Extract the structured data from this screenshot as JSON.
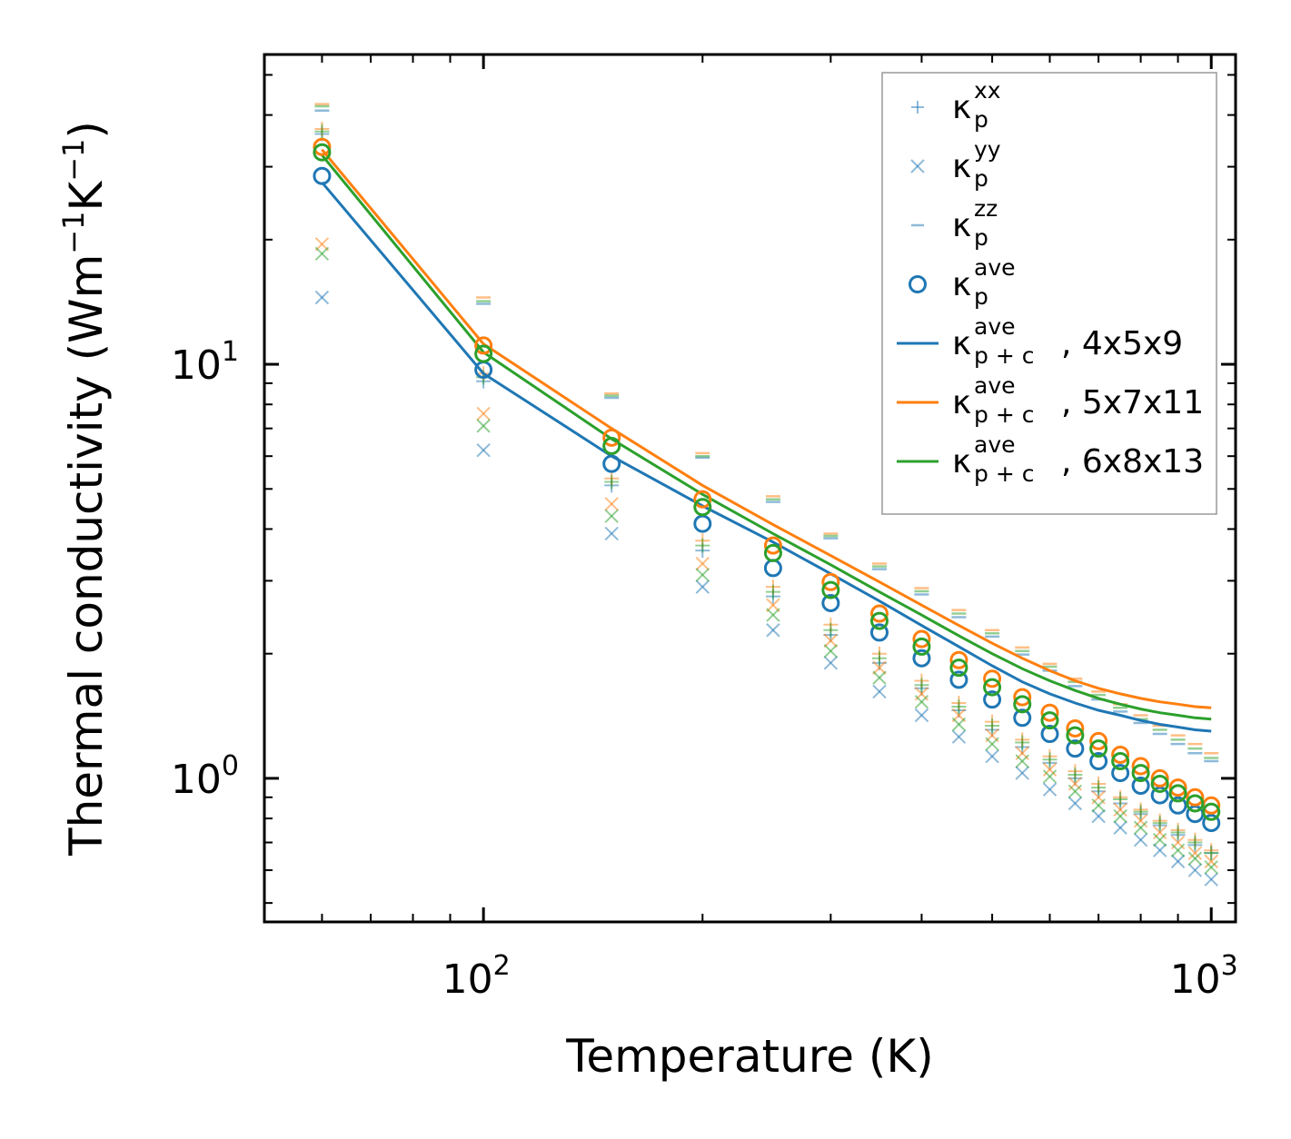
{
  "chart_data": {
    "type": "scatter",
    "xscale": "log",
    "yscale": "log",
    "xlabel": "Temperature (K)",
    "ylabel": {
      "main": "Thermal conductivity (Wm",
      "sup1": "−1",
      "mid": "K",
      "sup2": "−1",
      "end": ")"
    },
    "xlim": [
      50,
      1080
    ],
    "ylim": [
      0.45,
      56
    ],
    "x_major_ticks": [
      {
        "value": 100,
        "base": "10",
        "exp": "2"
      },
      {
        "value": 1000,
        "base": "10",
        "exp": "3"
      }
    ],
    "y_major_ticks": [
      {
        "value": 1,
        "base": "10",
        "exp": "0"
      },
      {
        "value": 10,
        "base": "10",
        "exp": "1"
      }
    ],
    "temperatures": [
      60,
      100,
      150,
      200,
      250,
      300,
      350,
      400,
      450,
      500,
      550,
      600,
      650,
      700,
      750,
      800,
      850,
      900,
      950,
      1000
    ],
    "datasets": [
      {
        "grid": "4x5x9",
        "color": "#1f77b4",
        "k_ave": [
          28.5,
          9.7,
          5.75,
          4.12,
          3.22,
          2.65,
          2.25,
          1.95,
          1.73,
          1.55,
          1.4,
          1.28,
          1.18,
          1.1,
          1.03,
          0.96,
          0.91,
          0.86,
          0.82,
          0.78
        ],
        "k_xx": [
          36,
          9.1,
          5.1,
          3.55,
          2.75,
          2.22,
          1.9,
          1.65,
          1.46,
          1.31,
          1.19,
          1.09,
          1.0,
          0.93,
          0.87,
          0.82,
          0.77,
          0.73,
          0.69,
          0.66
        ],
        "k_yy": [
          14.5,
          6.2,
          3.9,
          2.9,
          2.28,
          1.9,
          1.62,
          1.42,
          1.26,
          1.13,
          1.03,
          0.94,
          0.87,
          0.81,
          0.76,
          0.71,
          0.67,
          0.63,
          0.6,
          0.57
        ],
        "k_zz": [
          41,
          14,
          8.3,
          5.95,
          4.65,
          3.8,
          3.2,
          2.78,
          2.45,
          2.2,
          1.99,
          1.82,
          1.67,
          1.55,
          1.45,
          1.36,
          1.28,
          1.21,
          1.15,
          1.1
        ],
        "k_pc": [
          27.5,
          9.5,
          6.0,
          4.55,
          3.72,
          3.12,
          2.68,
          2.34,
          2.08,
          1.87,
          1.71,
          1.6,
          1.52,
          1.46,
          1.42,
          1.38,
          1.35,
          1.33,
          1.31,
          1.3
        ]
      },
      {
        "grid": "5x7x11",
        "color": "#ff7f0e",
        "k_ave": [
          33.5,
          11.1,
          6.65,
          4.72,
          3.65,
          2.98,
          2.5,
          2.17,
          1.93,
          1.74,
          1.57,
          1.44,
          1.32,
          1.23,
          1.14,
          1.07,
          1.0,
          0.95,
          0.9,
          0.86
        ],
        "k_xx": [
          37,
          9.5,
          5.3,
          3.75,
          2.9,
          2.35,
          2.0,
          1.72,
          1.52,
          1.37,
          1.24,
          1.13,
          1.04,
          0.97,
          0.9,
          0.84,
          0.79,
          0.75,
          0.71,
          0.67
        ],
        "k_yy": [
          19.5,
          7.6,
          4.6,
          3.3,
          2.62,
          2.15,
          1.85,
          1.6,
          1.42,
          1.27,
          1.15,
          1.05,
          0.97,
          0.9,
          0.84,
          0.79,
          0.74,
          0.7,
          0.66,
          0.63
        ],
        "k_zz": [
          42.5,
          14.5,
          8.5,
          6.1,
          4.8,
          3.9,
          3.3,
          2.88,
          2.55,
          2.28,
          2.07,
          1.89,
          1.74,
          1.62,
          1.51,
          1.42,
          1.34,
          1.27,
          1.21,
          1.15
        ],
        "k_pc": [
          33,
          11.2,
          7.0,
          5.1,
          4.1,
          3.45,
          2.98,
          2.62,
          2.34,
          2.12,
          1.95,
          1.82,
          1.72,
          1.65,
          1.6,
          1.56,
          1.53,
          1.51,
          1.49,
          1.48
        ]
      },
      {
        "grid": "6x8x13",
        "color": "#2ca02c",
        "k_ave": [
          32.5,
          10.6,
          6.35,
          4.52,
          3.5,
          2.85,
          2.4,
          2.08,
          1.85,
          1.66,
          1.51,
          1.38,
          1.27,
          1.18,
          1.1,
          1.03,
          0.97,
          0.92,
          0.87,
          0.83
        ],
        "k_xx": [
          36.5,
          9.3,
          5.2,
          3.65,
          2.82,
          2.28,
          1.95,
          1.68,
          1.49,
          1.34,
          1.22,
          1.11,
          1.02,
          0.95,
          0.89,
          0.83,
          0.78,
          0.74,
          0.7,
          0.66
        ],
        "k_yy": [
          18.5,
          7.1,
          4.3,
          3.1,
          2.48,
          2.03,
          1.75,
          1.53,
          1.35,
          1.21,
          1.1,
          1.01,
          0.93,
          0.86,
          0.81,
          0.76,
          0.71,
          0.67,
          0.64,
          0.61
        ],
        "k_zz": [
          42,
          14.2,
          8.4,
          6.0,
          4.72,
          3.85,
          3.25,
          2.83,
          2.5,
          2.24,
          2.03,
          1.86,
          1.71,
          1.59,
          1.48,
          1.39,
          1.31,
          1.24,
          1.18,
          1.12
        ],
        "k_pc": [
          32,
          10.7,
          6.6,
          4.85,
          3.9,
          3.28,
          2.82,
          2.48,
          2.21,
          2.0,
          1.84,
          1.72,
          1.63,
          1.56,
          1.51,
          1.47,
          1.44,
          1.42,
          1.4,
          1.39
        ]
      }
    ],
    "legend": {
      "position": "upper right",
      "entries": [
        {
          "marker": "plus",
          "color": "#1f77b4",
          "base": "κ",
          "sub": "p",
          "sup": "xx",
          "suffix": ""
        },
        {
          "marker": "cross",
          "color": "#1f77b4",
          "base": "κ",
          "sub": "p",
          "sup": "yy",
          "suffix": ""
        },
        {
          "marker": "dash",
          "color": "#1f77b4",
          "base": "κ",
          "sub": "p",
          "sup": "zz",
          "suffix": ""
        },
        {
          "marker": "circle",
          "color": "#1f77b4",
          "base": "κ",
          "sub": "p",
          "sup": "ave",
          "suffix": ""
        },
        {
          "marker": "line",
          "color": "#1f77b4",
          "base": "κ",
          "sub": "p + c",
          "sup": "ave",
          "suffix": ", 4x5x9"
        },
        {
          "marker": "line",
          "color": "#ff7f0e",
          "base": "κ",
          "sub": "p + c",
          "sup": "ave",
          "suffix": ", 5x7x11"
        },
        {
          "marker": "line",
          "color": "#2ca02c",
          "base": "κ",
          "sub": "p + c",
          "sup": "ave",
          "suffix": ", 6x8x13"
        }
      ]
    }
  }
}
